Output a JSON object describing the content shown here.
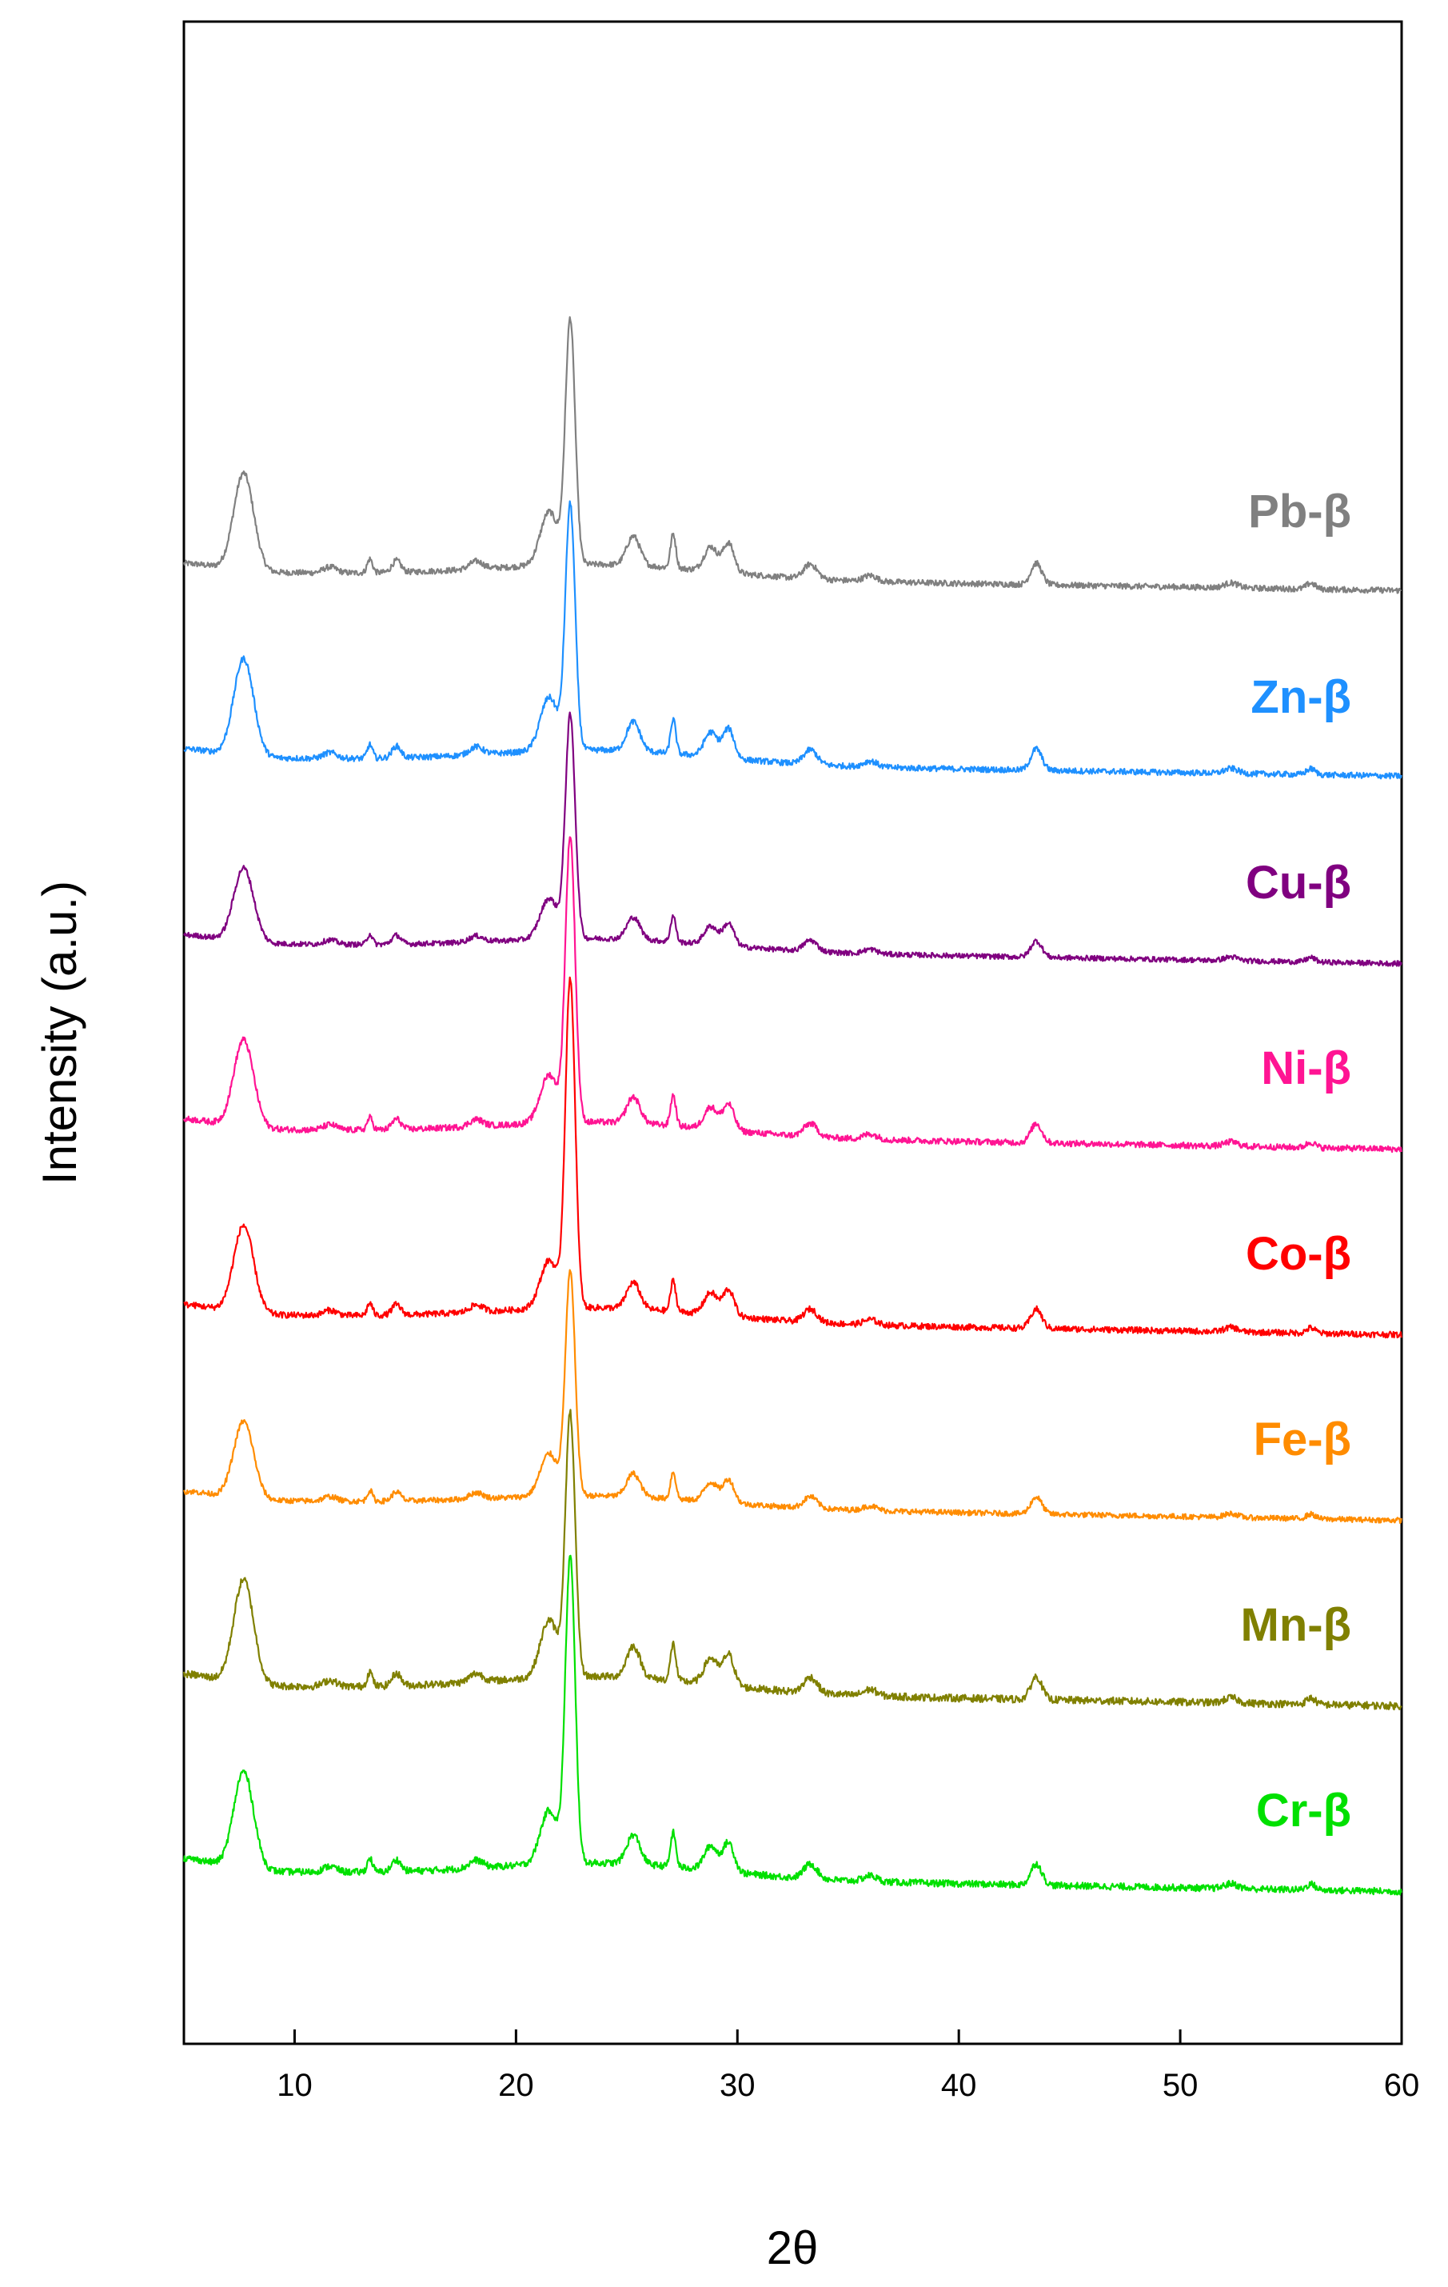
{
  "chart_data": {
    "type": "line",
    "title": "",
    "xlabel": "2θ",
    "ylabel": "Intensity (a.u.)",
    "xlim": [
      5,
      60
    ],
    "x_ticks": [
      "10",
      "20",
      "30",
      "40",
      "50",
      "60"
    ],
    "y_ticks": [],
    "grid": false,
    "stacked_offset": true,
    "series": [
      {
        "name": "Pb-β",
        "color": "#808080",
        "baseline": 1.7,
        "amp": 1.45,
        "peak_scale": 1.0,
        "bump": 0.55,
        "low": 0.08,
        "wiggle": 0.06,
        "slope": 0.2
      },
      {
        "name": "Zn-β",
        "color": "#1e90ff",
        "baseline": 1.85,
        "amp": 1.45,
        "peak_scale": 1.0,
        "bump": 0.55,
        "low": 0.08,
        "wiggle": 0.06,
        "slope": 0.2
      },
      {
        "name": "Cu-β",
        "color": "#800080",
        "baseline": 1.9,
        "amp": 1.1,
        "peak_scale": 1.2,
        "bump": 0.6,
        "low": 0.1,
        "wiggle": 0.07,
        "slope": 0.22
      },
      {
        "name": "Ni-β",
        "color": "#ff1493",
        "baseline": 1.8,
        "amp": 1.3,
        "peak_scale": 1.3,
        "bump": 0.6,
        "low": 0.1,
        "wiggle": 0.07,
        "slope": 0.22
      },
      {
        "name": "Co-β",
        "color": "#ff0000",
        "baseline": 1.7,
        "amp": 1.3,
        "peak_scale": 1.5,
        "bump": 0.6,
        "low": 0.1,
        "wiggle": 0.07,
        "slope": 0.22
      },
      {
        "name": "Fe-β",
        "color": "#ff8c00",
        "baseline": 1.7,
        "amp": 1.15,
        "peak_scale": 1.15,
        "bump": 0.55,
        "low": 0.1,
        "wiggle": 0.07,
        "slope": 0.22
      },
      {
        "name": "Mn-β",
        "color": "#808000",
        "baseline": 1.2,
        "amp": 1.55,
        "peak_scale": 1.0,
        "bump": 0.6,
        "low": 0.1,
        "wiggle": 0.07,
        "slope": 0.22
      },
      {
        "name": "Cr-β",
        "color": "#00e000",
        "baseline": 0.0,
        "amp": 1.45,
        "peak_scale": 1.25,
        "bump": 0.6,
        "low": 0.12,
        "wiggle": 0.07,
        "slope": 0.22
      }
    ],
    "peaks": [
      {
        "x": 7.7,
        "h": 1.0,
        "w": 0.45
      },
      {
        "x": 11.6,
        "h": 0.06,
        "w": 0.3
      },
      {
        "x": 13.4,
        "h": 0.14,
        "w": 0.12
      },
      {
        "x": 14.6,
        "h": 0.12,
        "w": 0.2
      },
      {
        "x": 18.2,
        "h": 0.08,
        "w": 0.3
      },
      {
        "x": 21.5,
        "h": 0.55,
        "w": 0.4
      },
      {
        "x": 22.45,
        "h": 2.5,
        "w": 0.22
      },
      {
        "x": 25.3,
        "h": 0.3,
        "w": 0.3
      },
      {
        "x": 27.1,
        "h": 0.35,
        "w": 0.12
      },
      {
        "x": 28.8,
        "h": 0.25,
        "w": 0.3
      },
      {
        "x": 29.6,
        "h": 0.3,
        "w": 0.25
      },
      {
        "x": 33.3,
        "h": 0.15,
        "w": 0.3
      },
      {
        "x": 36.0,
        "h": 0.06,
        "w": 0.3
      },
      {
        "x": 43.5,
        "h": 0.22,
        "w": 0.25
      },
      {
        "x": 52.3,
        "h": 0.05,
        "w": 0.3
      },
      {
        "x": 55.9,
        "h": 0.06,
        "w": 0.2
      }
    ]
  }
}
